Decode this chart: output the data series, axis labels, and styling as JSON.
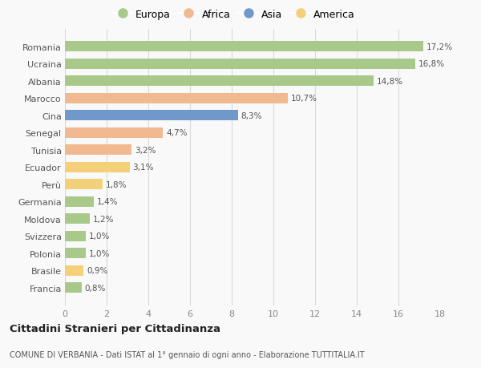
{
  "countries": [
    "Romania",
    "Ucraina",
    "Albania",
    "Marocco",
    "Cina",
    "Senegal",
    "Tunisia",
    "Ecuador",
    "Perù",
    "Germania",
    "Moldova",
    "Svizzera",
    "Polonia",
    "Brasile",
    "Francia"
  ],
  "values": [
    17.2,
    16.8,
    14.8,
    10.7,
    8.3,
    4.7,
    3.2,
    3.1,
    1.8,
    1.4,
    1.2,
    1.0,
    1.0,
    0.9,
    0.8
  ],
  "labels": [
    "17,2%",
    "16,8%",
    "14,8%",
    "10,7%",
    "8,3%",
    "4,7%",
    "3,2%",
    "3,1%",
    "1,8%",
    "1,4%",
    "1,2%",
    "1,0%",
    "1,0%",
    "0,9%",
    "0,8%"
  ],
  "continents": [
    "Europa",
    "Europa",
    "Europa",
    "Africa",
    "Asia",
    "Africa",
    "Africa",
    "America",
    "America",
    "Europa",
    "Europa",
    "Europa",
    "Europa",
    "America",
    "Europa"
  ],
  "continent_colors": {
    "Europa": "#a8c98a",
    "Africa": "#f0b990",
    "Asia": "#7098c8",
    "America": "#f5d07a"
  },
  "legend_order": [
    "Europa",
    "Africa",
    "Asia",
    "America"
  ],
  "xlim": [
    0,
    18
  ],
  "xticks": [
    0,
    2,
    4,
    6,
    8,
    10,
    12,
    14,
    16,
    18
  ],
  "title": "Cittadini Stranieri per Cittadinanza",
  "subtitle": "COMUNE DI VERBANIA - Dati ISTAT al 1° gennaio di ogni anno - Elaborazione TUTTITALIA.IT",
  "background_color": "#f9f9f9",
  "grid_color": "#d8d8d8",
  "bar_height": 0.6
}
